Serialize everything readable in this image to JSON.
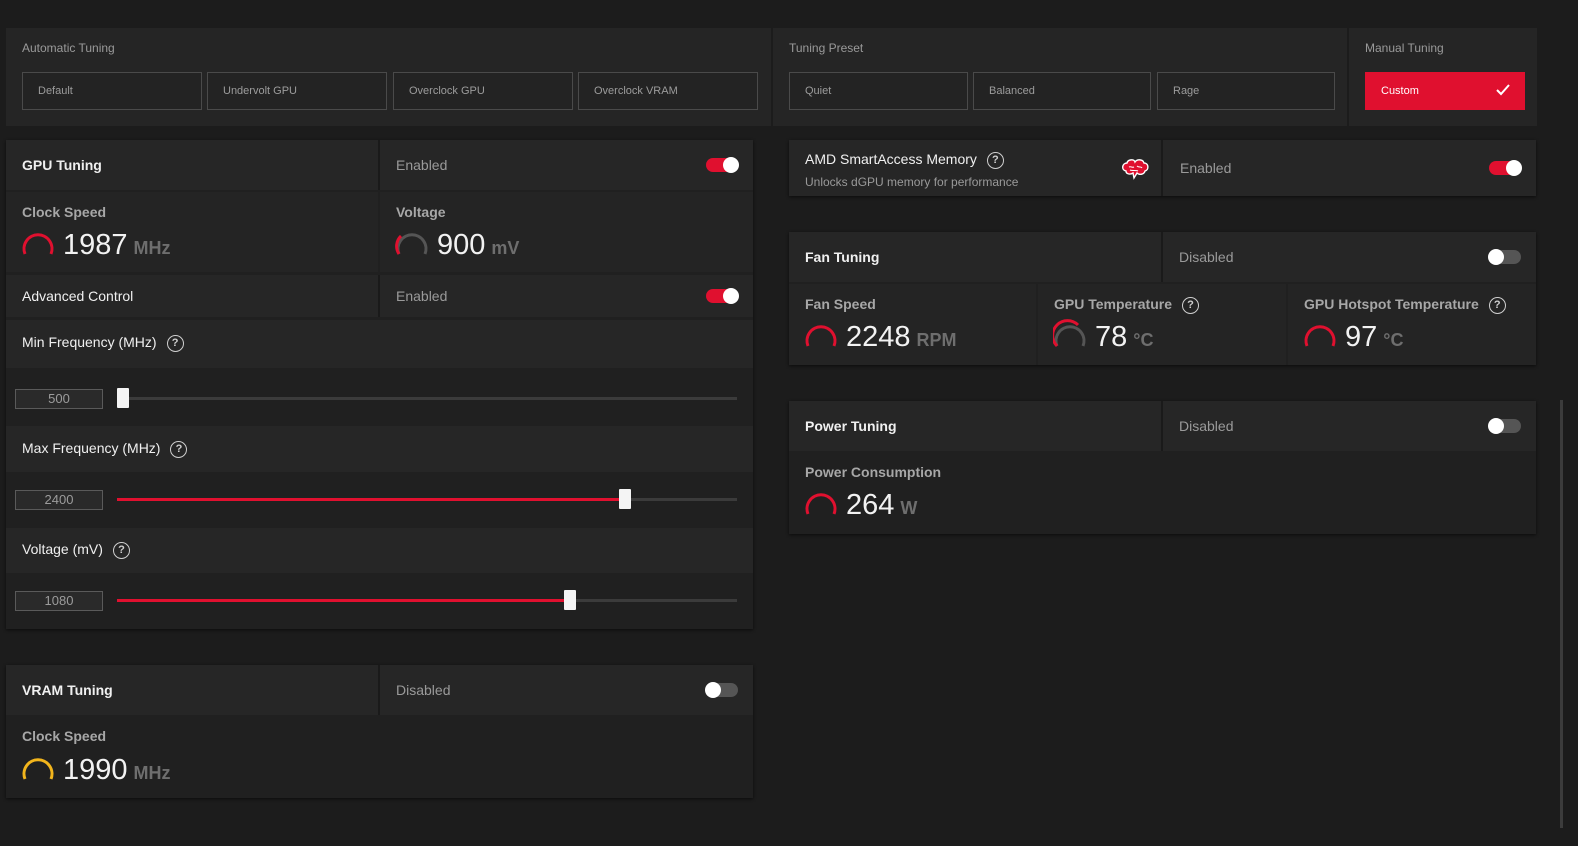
{
  "presets": {
    "automatic": {
      "label": "Automatic Tuning",
      "buttons": [
        "Default",
        "Undervolt GPU",
        "Overclock GPU",
        "Overclock VRAM"
      ]
    },
    "tuning": {
      "label": "Tuning Preset",
      "buttons": [
        "Quiet",
        "Balanced",
        "Rage"
      ]
    },
    "manual": {
      "label": "Manual Tuning",
      "button": "Custom"
    }
  },
  "gpu_tuning": {
    "title": "GPU Tuning",
    "state": "Enabled",
    "enabled": true,
    "clock": {
      "label": "Clock Speed",
      "value": "1987",
      "unit": "MHz"
    },
    "voltage": {
      "label": "Voltage",
      "value": "900",
      "unit": "mV"
    },
    "advanced": {
      "label": "Advanced Control",
      "state": "Enabled",
      "enabled": true
    },
    "min_freq": {
      "label": "Min Frequency (MHz)",
      "value": "500",
      "fraction": 0.0
    },
    "max_freq": {
      "label": "Max Frequency (MHz)",
      "value": "2400",
      "fraction": 0.82
    },
    "voltage_slider": {
      "label": "Voltage (mV)",
      "value": "1080",
      "fraction": 0.73
    }
  },
  "vram_tuning": {
    "title": "VRAM Tuning",
    "state": "Disabled",
    "enabled": false,
    "clock": {
      "label": "Clock Speed",
      "value": "1990",
      "unit": "MHz"
    }
  },
  "smart_access": {
    "title": "AMD SmartAccess Memory",
    "subtitle": "Unlocks dGPU memory for performance",
    "state": "Enabled",
    "enabled": true
  },
  "fan_tuning": {
    "title": "Fan Tuning",
    "state": "Disabled",
    "enabled": false,
    "fan_speed": {
      "label": "Fan Speed",
      "value": "2248",
      "unit": "RPM"
    },
    "gpu_temp": {
      "label": "GPU Temperature",
      "value": "78",
      "unit": "°C"
    },
    "hotspot_temp": {
      "label": "GPU Hotspot Temperature",
      "value": "97",
      "unit": "°C"
    }
  },
  "power_tuning": {
    "title": "Power Tuning",
    "state": "Disabled",
    "enabled": false,
    "consumption": {
      "label": "Power Consumption",
      "value": "264",
      "unit": "W"
    }
  },
  "colors": {
    "accent": "#e0102f",
    "vram_gauge": "#f2b51c",
    "background": "#1c1c1c"
  }
}
